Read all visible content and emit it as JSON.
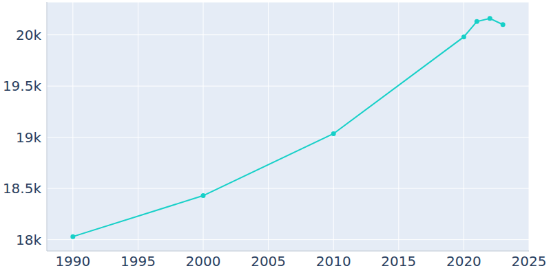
{
  "chart_data": {
    "type": "line",
    "x": [
      1990,
      2000,
      2010,
      2020,
      2021,
      2022,
      2023
    ],
    "values": [
      18030,
      18430,
      19035,
      19980,
      20130,
      20160,
      20100
    ],
    "color": "#17d0c8",
    "marker": "circle",
    "xlim": [
      1988,
      2025
    ],
    "xticks": [
      1990,
      1995,
      2000,
      2005,
      2010,
      2015,
      2020,
      2025
    ],
    "ylim": [
      17890,
      20320
    ],
    "yticks": [
      {
        "value": 18000,
        "label": "18k"
      },
      {
        "value": 18500,
        "label": "18.5k"
      },
      {
        "value": 19000,
        "label": "19k"
      },
      {
        "value": 19500,
        "label": "19.5k"
      },
      {
        "value": 20000,
        "label": "20k"
      }
    ],
    "grid": true
  }
}
